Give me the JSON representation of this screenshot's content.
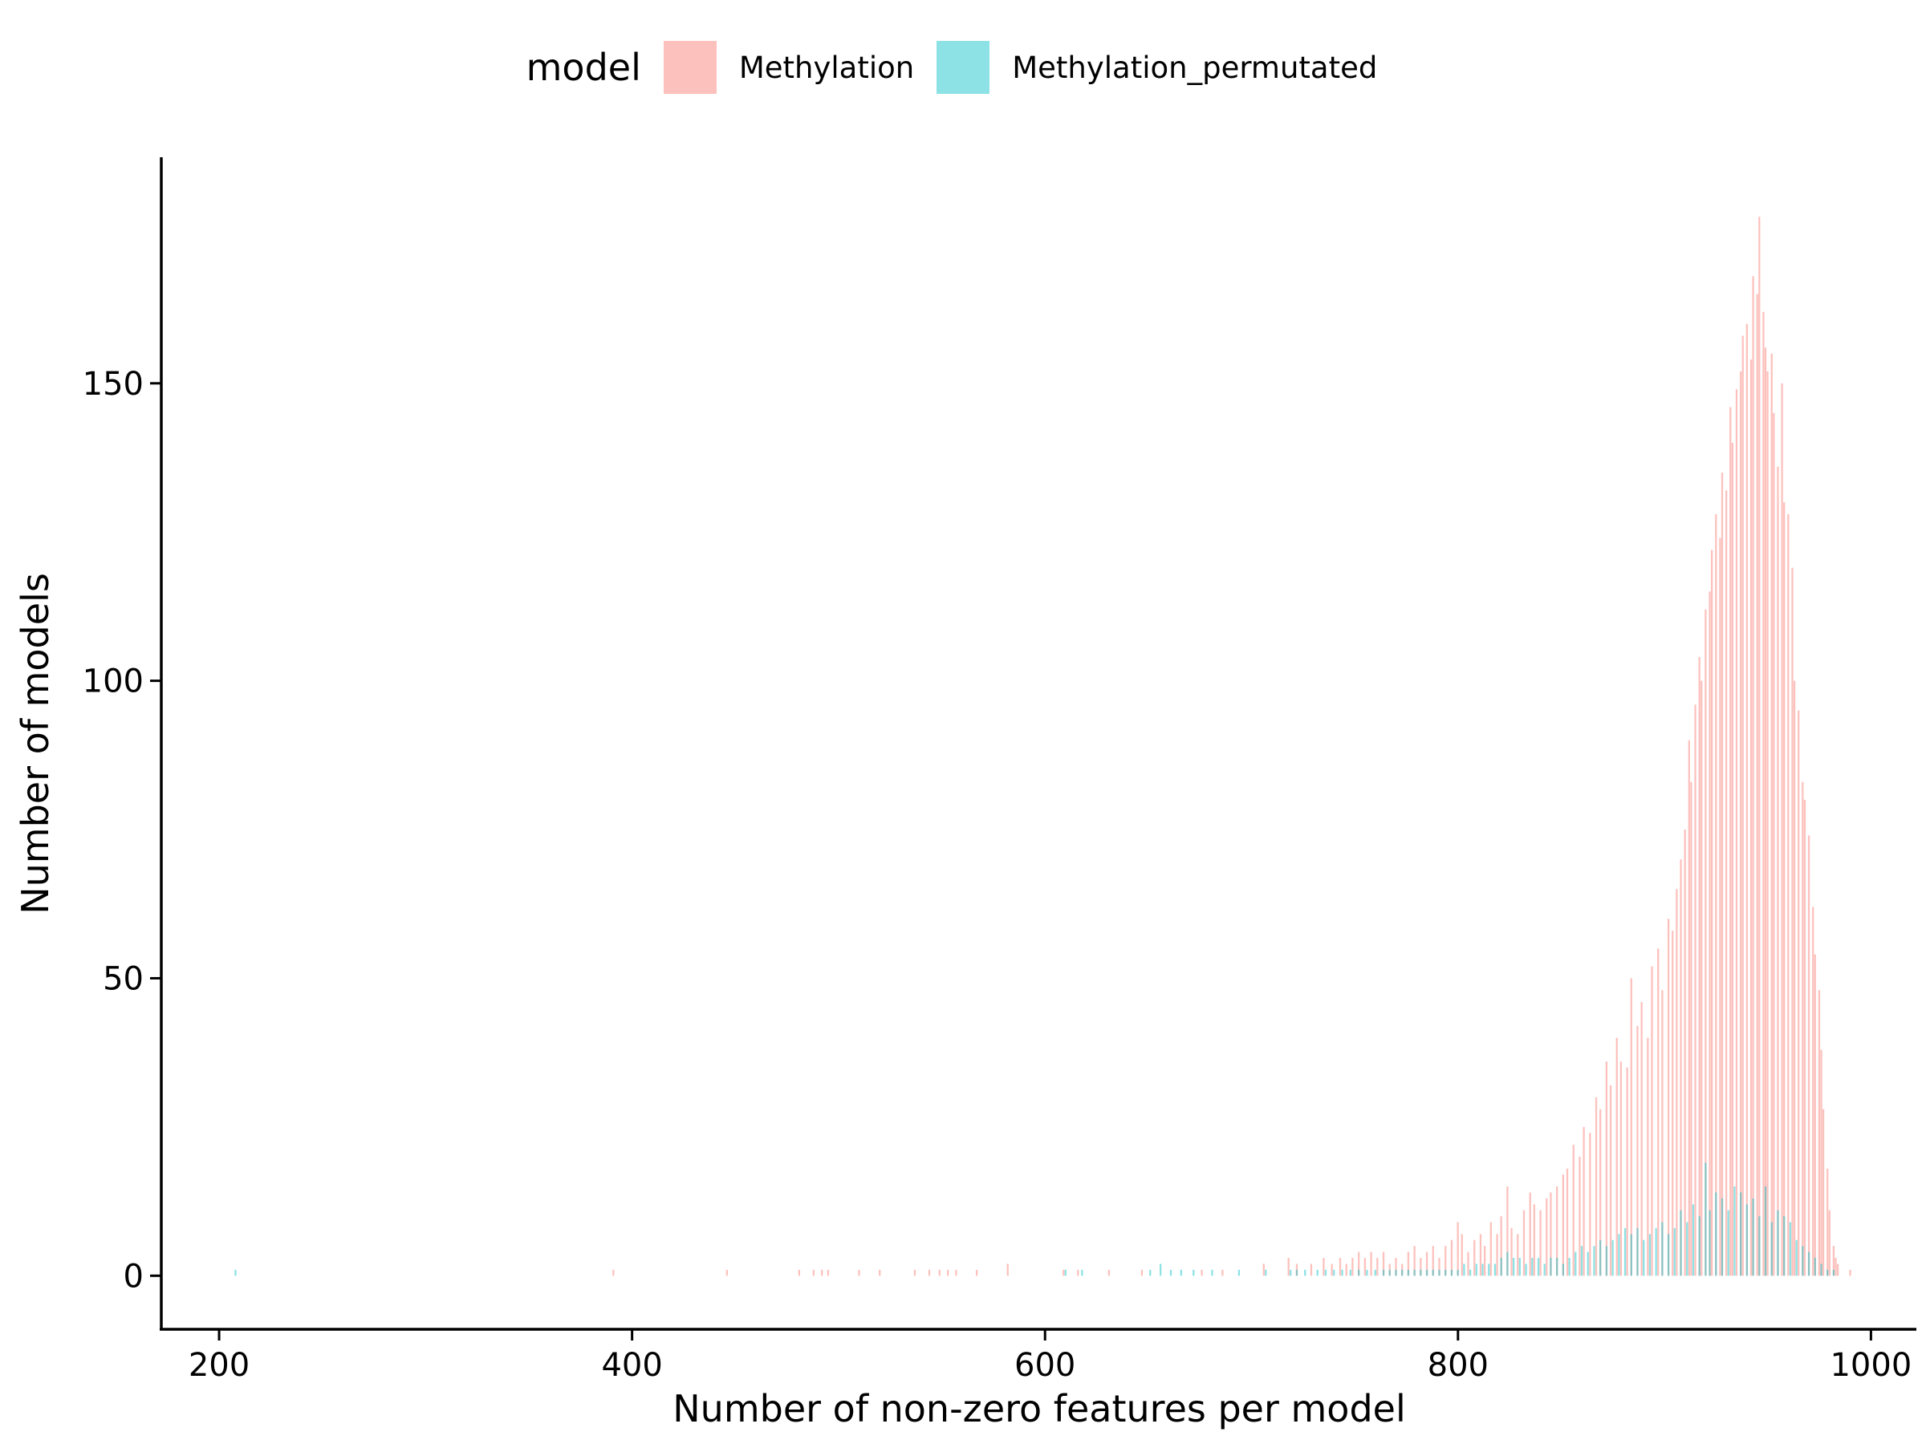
{
  "chart_data": {
    "type": "bar",
    "subtype": "histogram",
    "xlabel": "Number of non-zero features per model",
    "ylabel": "Number of models",
    "xlim": [
      172,
      1022
    ],
    "ylim": [
      -9,
      188
    ],
    "x_ticks": [
      200,
      400,
      600,
      800,
      1000
    ],
    "x_tick_labels": [
      "200",
      "400",
      "600",
      "800",
      "1000"
    ],
    "y_ticks": [
      0,
      50,
      100,
      150
    ],
    "y_tick_labels": [
      "0",
      "50",
      "100",
      "150"
    ],
    "grid": false,
    "legend": {
      "title": "model",
      "placement": "top",
      "entries": [
        "Methylation",
        "Methylation_permutated"
      ]
    },
    "bin_width": 1,
    "series": [
      {
        "name": "Methylation",
        "color": "#F8766D",
        "opacity": 0.45,
        "points": [
          [
            391,
            1
          ],
          [
            446,
            1
          ],
          [
            481,
            1
          ],
          [
            488,
            1
          ],
          [
            492,
            1
          ],
          [
            495,
            1
          ],
          [
            510,
            1
          ],
          [
            520,
            1
          ],
          [
            537,
            1
          ],
          [
            544,
            1
          ],
          [
            549,
            1
          ],
          [
            553,
            1
          ],
          [
            557,
            1
          ],
          [
            567,
            1
          ],
          [
            582,
            2
          ],
          [
            609,
            1
          ],
          [
            616,
            1
          ],
          [
            631,
            1
          ],
          [
            647,
            1
          ],
          [
            676,
            1
          ],
          [
            686,
            1
          ],
          [
            706,
            2
          ],
          [
            718,
            3
          ],
          [
            722,
            2
          ],
          [
            729,
            2
          ],
          [
            735,
            3
          ],
          [
            739,
            2
          ],
          [
            743,
            3
          ],
          [
            746,
            2
          ],
          [
            749,
            3
          ],
          [
            752,
            4
          ],
          [
            755,
            3
          ],
          [
            758,
            4
          ],
          [
            761,
            3
          ],
          [
            764,
            4
          ],
          [
            767,
            2
          ],
          [
            770,
            3
          ],
          [
            773,
            2
          ],
          [
            776,
            4
          ],
          [
            779,
            5
          ],
          [
            782,
            3
          ],
          [
            785,
            4
          ],
          [
            788,
            5
          ],
          [
            791,
            3
          ],
          [
            794,
            5
          ],
          [
            797,
            6
          ],
          [
            800,
            9
          ],
          [
            802,
            7
          ],
          [
            805,
            4
          ],
          [
            808,
            6
          ],
          [
            811,
            7
          ],
          [
            813,
            5
          ],
          [
            816,
            9
          ],
          [
            819,
            7
          ],
          [
            821,
            10
          ],
          [
            824,
            15
          ],
          [
            826,
            8
          ],
          [
            829,
            7
          ],
          [
            832,
            11
          ],
          [
            835,
            14
          ],
          [
            837,
            12
          ],
          [
            840,
            11
          ],
          [
            843,
            13
          ],
          [
            845,
            14
          ],
          [
            848,
            15
          ],
          [
            851,
            17
          ],
          [
            853,
            18
          ],
          [
            856,
            22
          ],
          [
            859,
            20
          ],
          [
            861,
            25
          ],
          [
            864,
            24
          ],
          [
            867,
            30
          ],
          [
            869,
            28
          ],
          [
            872,
            36
          ],
          [
            874,
            32
          ],
          [
            877,
            40
          ],
          [
            879,
            36
          ],
          [
            882,
            35
          ],
          [
            884,
            50
          ],
          [
            887,
            42
          ],
          [
            889,
            46
          ],
          [
            892,
            40
          ],
          [
            894,
            52
          ],
          [
            897,
            55
          ],
          [
            899,
            48
          ],
          [
            902,
            60
          ],
          [
            904,
            58
          ],
          [
            906,
            65
          ],
          [
            908,
            70
          ],
          [
            910,
            75
          ],
          [
            912,
            90
          ],
          [
            913,
            83
          ],
          [
            915,
            96
          ],
          [
            917,
            104
          ],
          [
            918,
            100
          ],
          [
            920,
            112
          ],
          [
            922,
            115
          ],
          [
            923,
            122
          ],
          [
            925,
            128
          ],
          [
            927,
            124
          ],
          [
            928,
            135
          ],
          [
            930,
            132
          ],
          [
            932,
            146
          ],
          [
            933,
            140
          ],
          [
            935,
            149
          ],
          [
            937,
            152
          ],
          [
            938,
            158
          ],
          [
            940,
            160
          ],
          [
            942,
            154
          ],
          [
            943,
            168
          ],
          [
            945,
            165
          ],
          [
            946,
            178
          ],
          [
            948,
            162
          ],
          [
            949,
            156
          ],
          [
            950,
            152
          ],
          [
            952,
            155
          ],
          [
            953,
            145
          ],
          [
            955,
            136
          ],
          [
            957,
            150
          ],
          [
            958,
            130
          ],
          [
            960,
            128
          ],
          [
            962,
            119
          ],
          [
            963,
            100
          ],
          [
            965,
            95
          ],
          [
            967,
            83
          ],
          [
            968,
            80
          ],
          [
            970,
            74
          ],
          [
            972,
            62
          ],
          [
            973,
            54
          ],
          [
            975,
            48
          ],
          [
            976,
            38
          ],
          [
            977,
            28
          ],
          [
            979,
            18
          ],
          [
            980,
            11
          ],
          [
            982,
            5
          ],
          [
            983,
            3
          ],
          [
            984,
            2
          ],
          [
            990,
            1
          ]
        ]
      },
      {
        "name": "Methylation_permutated",
        "color": "#00BFC4",
        "opacity": 0.45,
        "points": [
          [
            208,
            1
          ],
          [
            610,
            1
          ],
          [
            618,
            1
          ],
          [
            651,
            1
          ],
          [
            656,
            2
          ],
          [
            661,
            1
          ],
          [
            666,
            1
          ],
          [
            672,
            1
          ],
          [
            681,
            1
          ],
          [
            694,
            1
          ],
          [
            707,
            1
          ],
          [
            719,
            1
          ],
          [
            722,
            1
          ],
          [
            726,
            1
          ],
          [
            732,
            1
          ],
          [
            736,
            1
          ],
          [
            740,
            1
          ],
          [
            744,
            1
          ],
          [
            748,
            1
          ],
          [
            752,
            1
          ],
          [
            756,
            1
          ],
          [
            760,
            1
          ],
          [
            764,
            1
          ],
          [
            767,
            1
          ],
          [
            770,
            1
          ],
          [
            773,
            1
          ],
          [
            776,
            1
          ],
          [
            779,
            1
          ],
          [
            782,
            1
          ],
          [
            785,
            1
          ],
          [
            788,
            1
          ],
          [
            791,
            1
          ],
          [
            794,
            1
          ],
          [
            797,
            1
          ],
          [
            800,
            1
          ],
          [
            803,
            2
          ],
          [
            806,
            1
          ],
          [
            809,
            2
          ],
          [
            812,
            2
          ],
          [
            815,
            2
          ],
          [
            818,
            2
          ],
          [
            821,
            3
          ],
          [
            824,
            4
          ],
          [
            827,
            3
          ],
          [
            830,
            3
          ],
          [
            833,
            2
          ],
          [
            836,
            3
          ],
          [
            839,
            3
          ],
          [
            842,
            2
          ],
          [
            845,
            3
          ],
          [
            848,
            3
          ],
          [
            851,
            2
          ],
          [
            854,
            3
          ],
          [
            857,
            4
          ],
          [
            860,
            5
          ],
          [
            863,
            4
          ],
          [
            866,
            5
          ],
          [
            869,
            6
          ],
          [
            872,
            5
          ],
          [
            875,
            6
          ],
          [
            878,
            7
          ],
          [
            881,
            8
          ],
          [
            884,
            7
          ],
          [
            887,
            8
          ],
          [
            890,
            6
          ],
          [
            893,
            7
          ],
          [
            896,
            8
          ],
          [
            899,
            9
          ],
          [
            902,
            7
          ],
          [
            905,
            8
          ],
          [
            908,
            11
          ],
          [
            911,
            9
          ],
          [
            914,
            12
          ],
          [
            917,
            10
          ],
          [
            920,
            19
          ],
          [
            922,
            11
          ],
          [
            925,
            14
          ],
          [
            928,
            13
          ],
          [
            931,
            11
          ],
          [
            934,
            15
          ],
          [
            937,
            14
          ],
          [
            940,
            12
          ],
          [
            943,
            13
          ],
          [
            946,
            10
          ],
          [
            949,
            15
          ],
          [
            952,
            9
          ],
          [
            955,
            11
          ],
          [
            958,
            10
          ],
          [
            961,
            9
          ],
          [
            964,
            6
          ],
          [
            967,
            5
          ],
          [
            970,
            4
          ],
          [
            973,
            3
          ],
          [
            976,
            2
          ],
          [
            979,
            1
          ],
          [
            982,
            1
          ]
        ]
      }
    ]
  }
}
